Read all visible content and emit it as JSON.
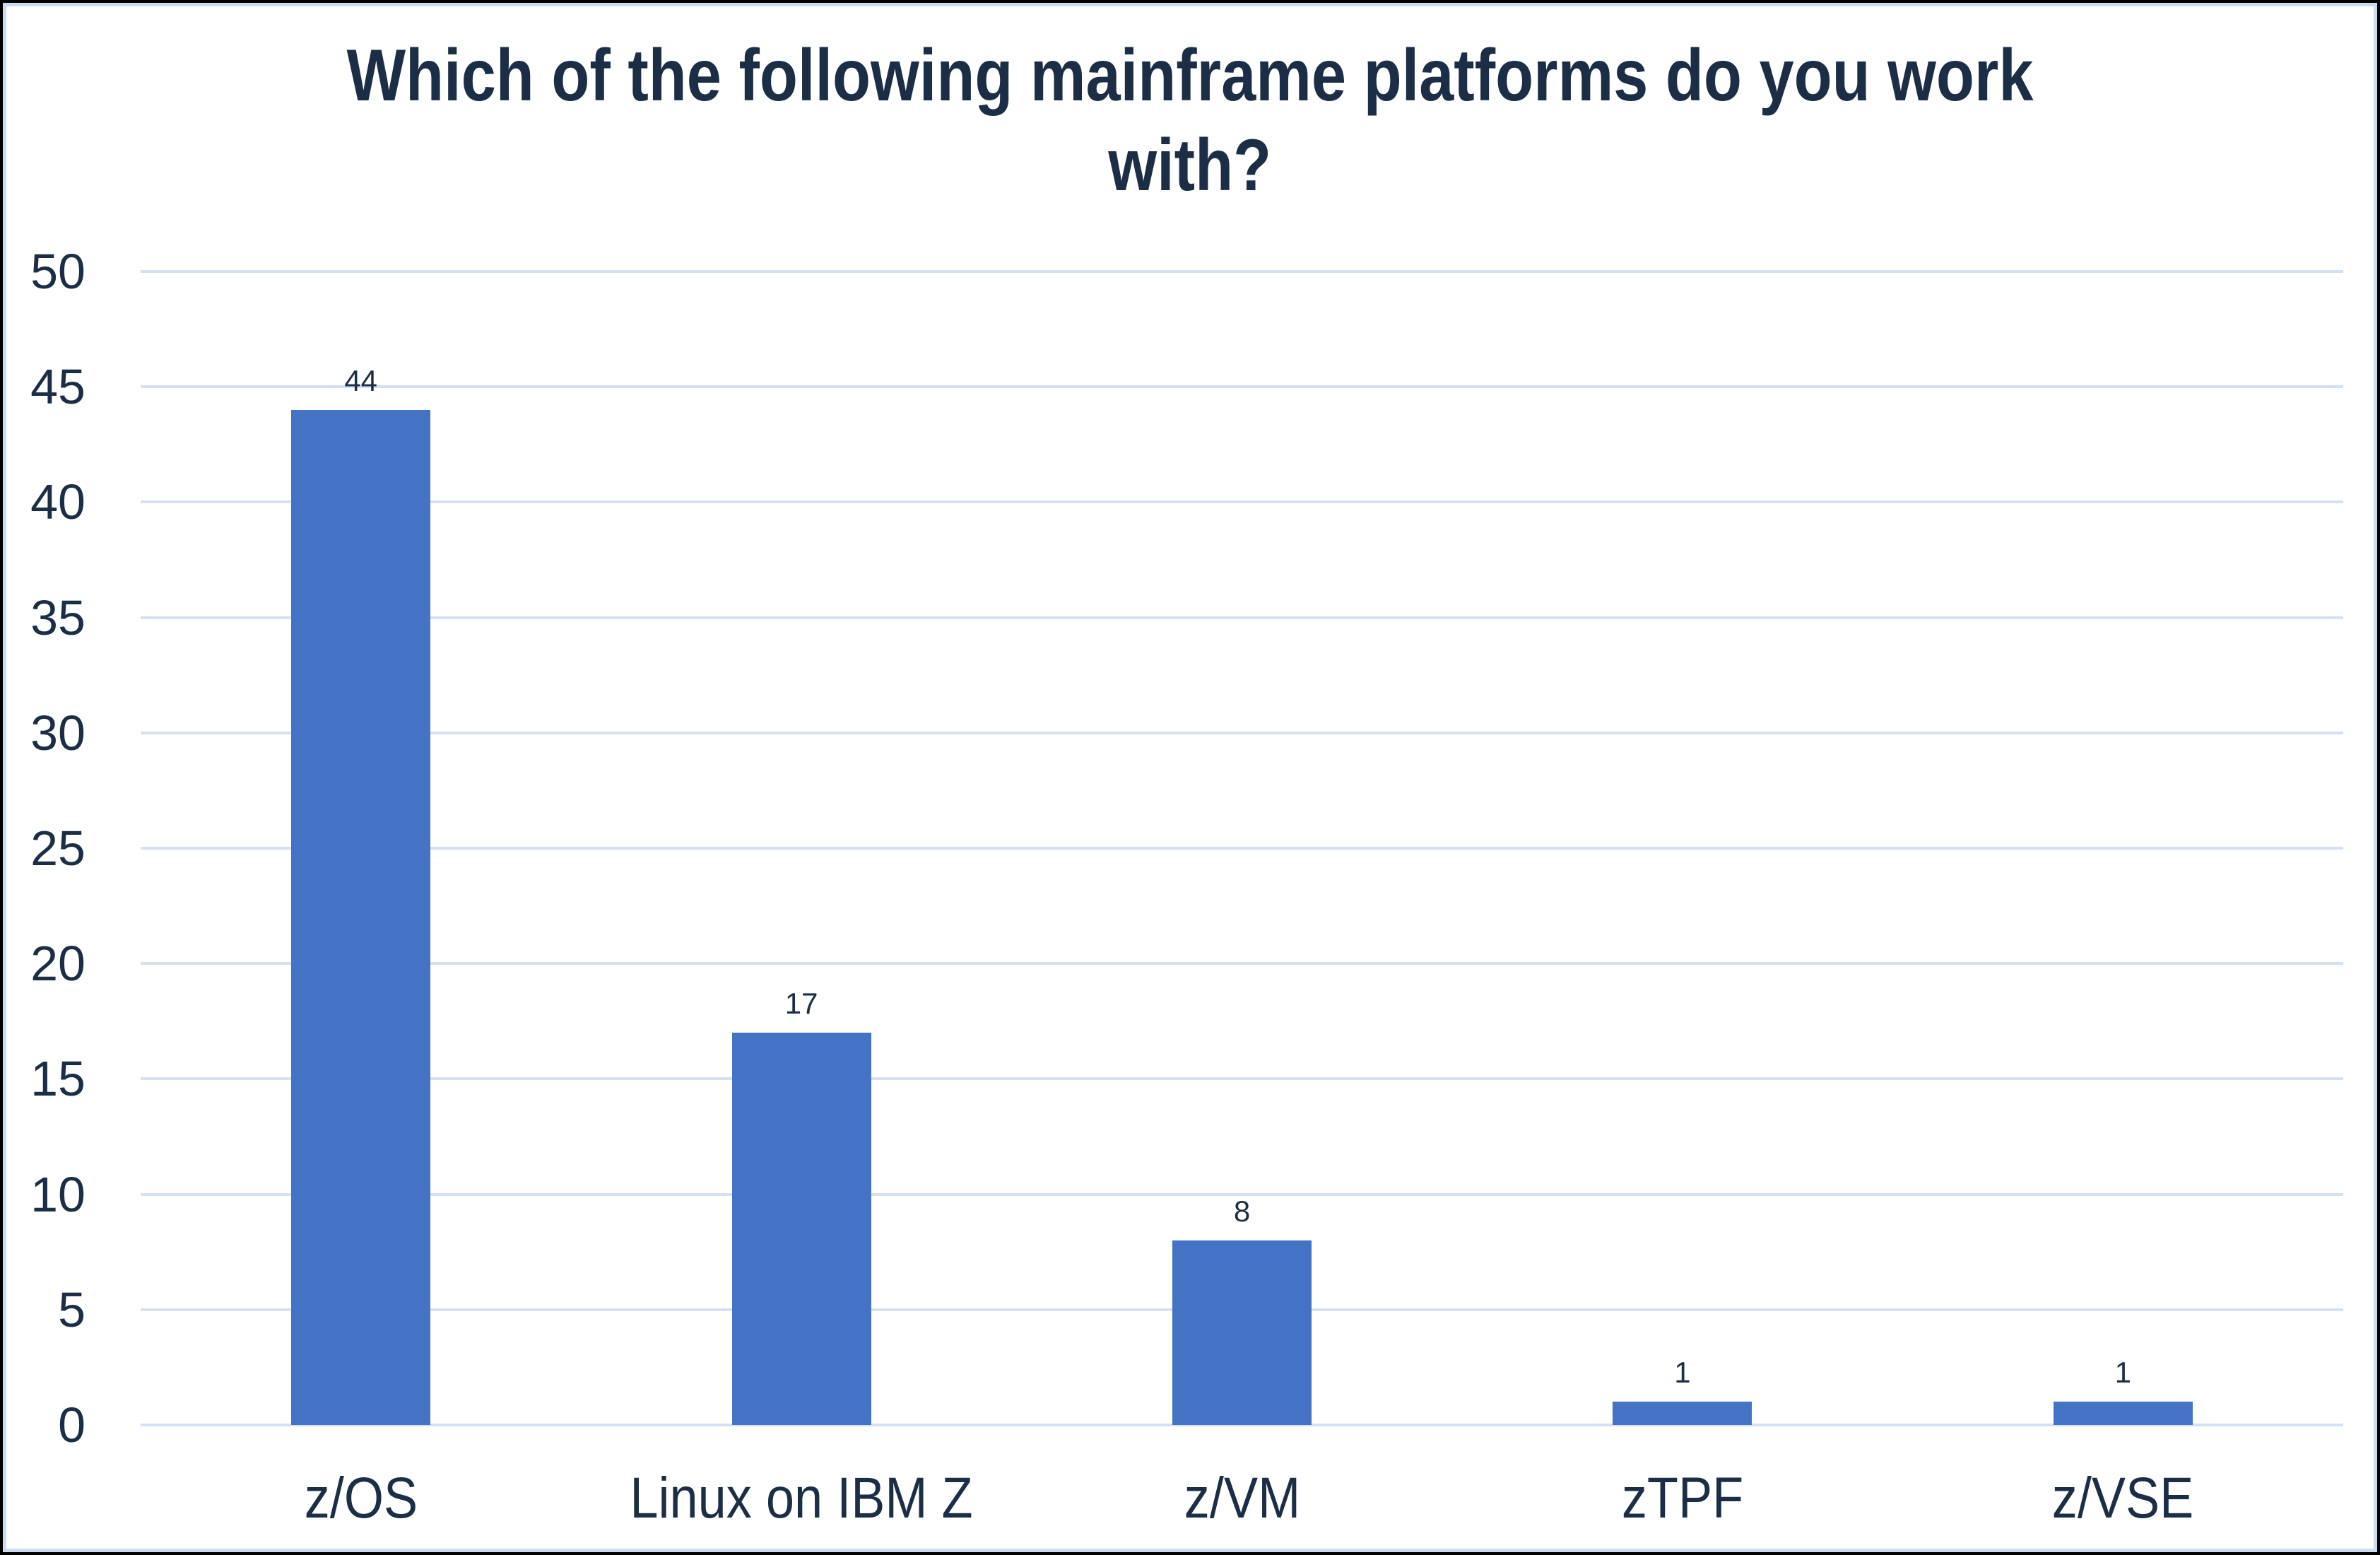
{
  "chart_data": {
    "type": "bar",
    "title": "Which of the following mainframe platforms do you work with?",
    "title_lines": [
      "Which of the following mainframe platforms do you work",
      "with?"
    ],
    "categories": [
      "z/OS",
      "Linux on IBM Z",
      "z/VM",
      "zTPF",
      "z/VSE"
    ],
    "values": [
      44,
      17,
      8,
      1,
      1
    ],
    "data_labels": [
      "44",
      "17",
      "8",
      "1",
      "1"
    ],
    "xlabel": "",
    "ylabel": "",
    "ylim": [
      0,
      50
    ],
    "yticks": [
      0,
      5,
      10,
      15,
      20,
      25,
      30,
      35,
      40,
      45,
      50
    ],
    "grid": "horizontal",
    "legend": "none",
    "colors": {
      "bar": "#4472C4",
      "gridline": "#D5E1F3",
      "text": "#1C2E45",
      "frame_outer": "#000000",
      "frame_inner": "#CBDCF0",
      "background": "#FFFFFF"
    }
  }
}
